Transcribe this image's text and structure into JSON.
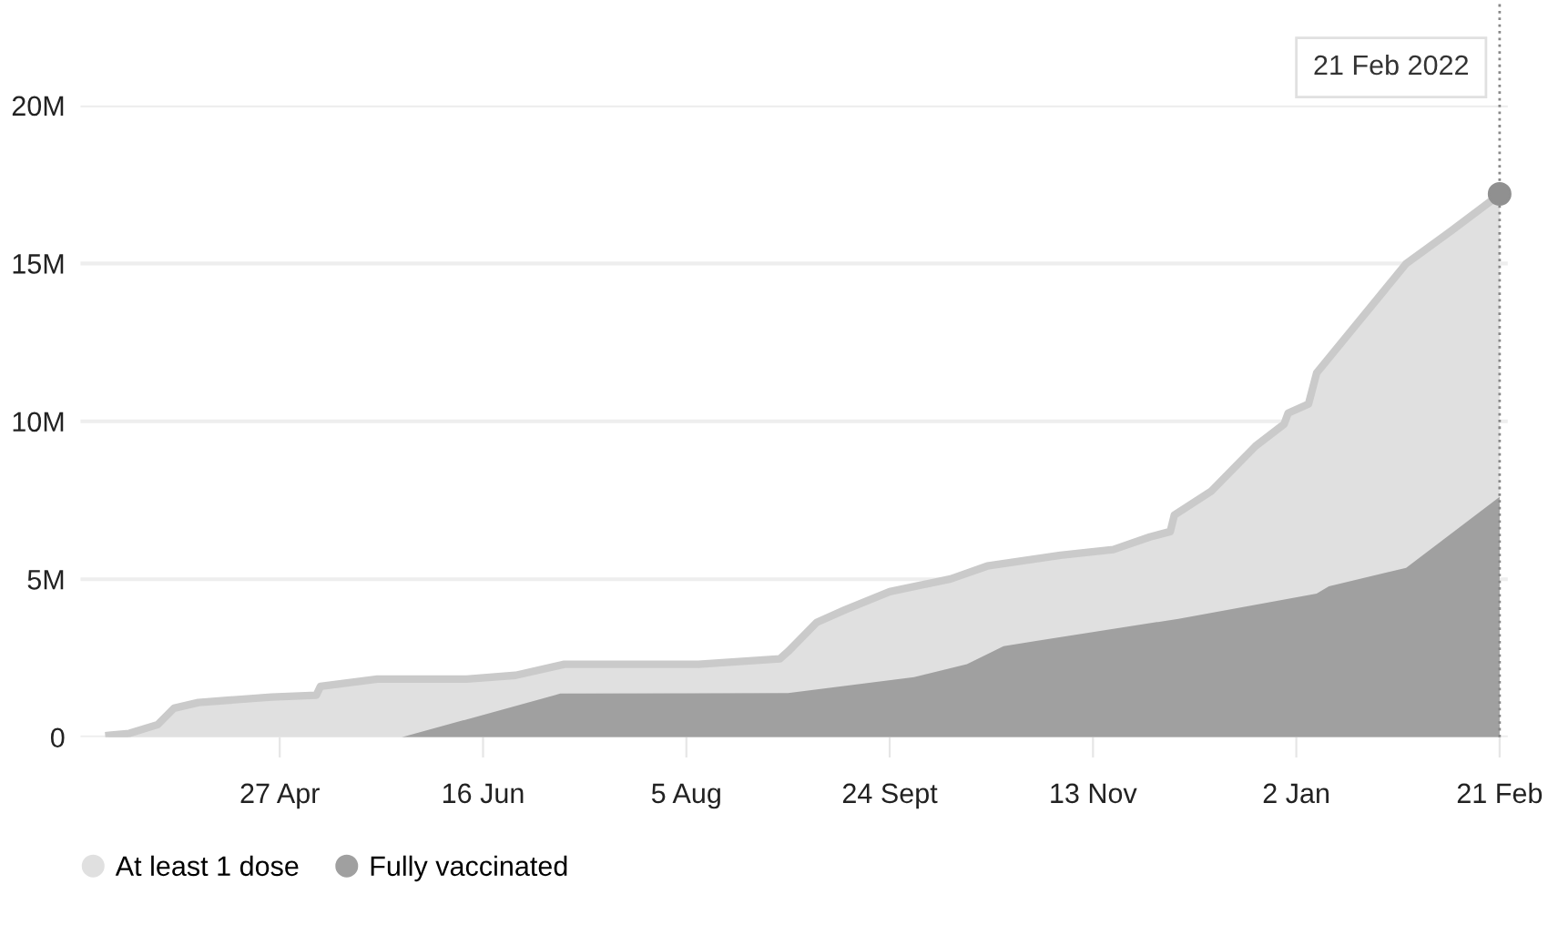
{
  "chart_data": {
    "type": "area",
    "series": [
      {
        "name": "At least 1 dose",
        "color": "#e0e0e0",
        "x": [
          "2021-03-16",
          "2021-03-21",
          "2021-03-28",
          "2021-04-01",
          "2021-04-07",
          "2021-04-25",
          "2021-05-06",
          "2021-05-07",
          "2021-05-21",
          "2021-06-12",
          "2021-06-24",
          "2021-07-06",
          "2021-08-08",
          "2021-08-28",
          "2021-08-30",
          "2021-09-06",
          "2021-09-13",
          "2021-09-24",
          "2021-10-09",
          "2021-10-18",
          "2021-11-05",
          "2021-11-18",
          "2021-11-27",
          "2021-12-02",
          "2021-12-03",
          "2021-12-12",
          "2021-12-23",
          "2021-12-30",
          "2021-12-31",
          "2022-01-05",
          "2022-01-07",
          "2022-01-18",
          "2022-01-29",
          "2022-02-09",
          "2022-02-21"
        ],
        "values": [
          60000,
          120000,
          400000,
          920000,
          1100000,
          1270000,
          1330000,
          1610000,
          1840000,
          1840000,
          1960000,
          2310000,
          2310000,
          2480000,
          2710000,
          3630000,
          4030000,
          4610000,
          5010000,
          5420000,
          5760000,
          5940000,
          6340000,
          6510000,
          7030000,
          7780000,
          9220000,
          9910000,
          10260000,
          10550000,
          11530000,
          13260000,
          14990000,
          16020000,
          17180000
        ]
      },
      {
        "name": "Fully vaccinated",
        "color": "#a0a0a0",
        "x": [
          "2021-05-27",
          "2021-07-05",
          "2021-08-30",
          "2021-09-30",
          "2021-10-13",
          "2021-10-22",
          "2021-10-30",
          "2021-12-04",
          "2022-01-07",
          "2022-01-10",
          "2022-01-29",
          "2022-02-21"
        ],
        "values": [
          0,
          1380000,
          1400000,
          1900000,
          2310000,
          2880000,
          3050000,
          3750000,
          4550000,
          4780000,
          5360000,
          7610000
        ]
      },
      {
        "type": "scatter",
        "color": "#909090",
        "x": [
          "2022-02-21"
        ],
        "values": [
          17200000
        ]
      }
    ],
    "ref_lines": [
      {
        "axis": "x",
        "value": "2022-02-21",
        "label": "21 Feb 2022",
        "color": "#888888",
        "line_style": "dotted"
      }
    ],
    "xlim": [
      "2021-03-09",
      "2022-02-23"
    ],
    "xticks": [
      {
        "value": "2021-04-27",
        "label": "27 Apr"
      },
      {
        "value": "2021-06-16",
        "label": "16 Jun"
      },
      {
        "value": "2021-08-05",
        "label": "5 Aug"
      },
      {
        "value": "2021-09-24",
        "label": "24 Sept"
      },
      {
        "value": "2021-11-13",
        "label": "13 Nov"
      },
      {
        "value": "2022-01-02",
        "label": "2 Jan"
      },
      {
        "value": "2022-02-21",
        "label": "21 Feb"
      }
    ],
    "ylim": [
      0,
      20000000
    ],
    "yticks": [
      {
        "value": 0,
        "label": "0"
      },
      {
        "value": 5000000,
        "label": "5M"
      },
      {
        "value": 10000000,
        "label": "10M"
      },
      {
        "value": 15000000,
        "label": "15M"
      },
      {
        "value": 20000000,
        "label": "20M"
      }
    ],
    "grid": "y",
    "legend": "bottom left"
  }
}
